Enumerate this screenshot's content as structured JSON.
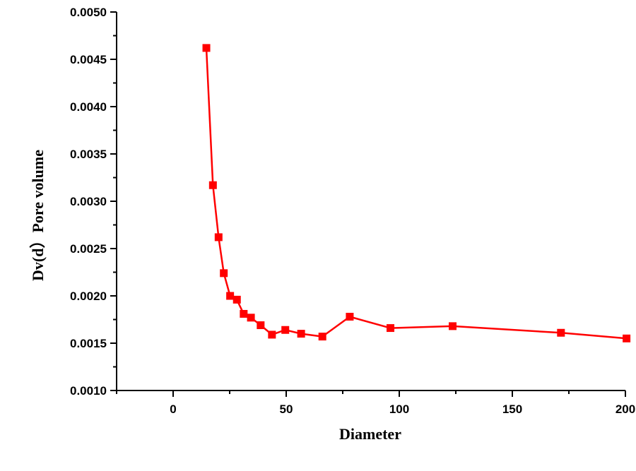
{
  "chart_data": {
    "type": "line",
    "title": "",
    "xlabel": "Diameter",
    "ylabel": "Dv(d）Pore volume",
    "xlim": [
      -25,
      200
    ],
    "ylim": [
      0.001,
      0.005
    ],
    "x_ticks": [
      0,
      50,
      100,
      150,
      200
    ],
    "x_tick_labels": [
      "0",
      "50",
      "100",
      "150",
      "200"
    ],
    "y_ticks": [
      0.001,
      0.0015,
      0.002,
      0.0025,
      0.003,
      0.0035,
      0.004,
      0.0045,
      0.005
    ],
    "y_tick_labels": [
      "0.0010",
      "0.0015",
      "0.0020",
      "0.0025",
      "0.0030",
      "0.0035",
      "0.0040",
      "0.0045",
      "0.0050"
    ],
    "grid": false,
    "legend": "none",
    "series": [
      {
        "color": "#ff0000",
        "marker": "square",
        "x": [
          14.7,
          17.6,
          20.1,
          22.4,
          25.2,
          28.2,
          31.2,
          34.4,
          38.7,
          43.7,
          49.6,
          56.6,
          66.0,
          78.1,
          96.1,
          123.6,
          171.5,
          200.5
        ],
        "y": [
          0.00462,
          0.00317,
          0.00262,
          0.00224,
          0.002,
          0.00196,
          0.00181,
          0.00177,
          0.00169,
          0.00159,
          0.00164,
          0.0016,
          0.00157,
          0.00178,
          0.00166,
          0.00168,
          0.00161,
          0.00155
        ]
      }
    ]
  }
}
